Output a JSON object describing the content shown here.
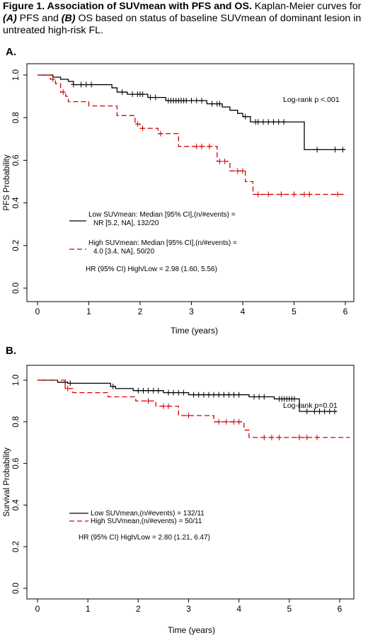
{
  "caption": {
    "title": "Figure 1. Association of SUVmean with PFS and OS.",
    "text_1": " Kaplan-Meier curves for ",
    "label_a": "(A)",
    "text_2": " PFS and ",
    "label_b": "(B)",
    "text_3": " OS based on status of baseline SUVmean of dominant lesion in untreated high-risk FL."
  },
  "chart_data": [
    {
      "type": "line",
      "panel": "A.",
      "xlabel": "Time (years)",
      "ylabel": "PFS Probability",
      "xlim": [
        0,
        6.2
      ],
      "ylim": [
        0,
        1
      ],
      "xticks": [
        0,
        1,
        2,
        3,
        4,
        5,
        6
      ],
      "yticks": [
        "0.0",
        "0.2",
        "0.4",
        "0.6",
        "0.8",
        "1.0"
      ],
      "annotation": "Log-rank p <.001",
      "hr_text": "HR (95% CI) High/Low = 2.98 (1.60, 5.56)",
      "legend": {
        "placement": "lower-left",
        "entries": [
          {
            "line1": "Low SUVmean: Median [95% CI],(n/#events) =",
            "line2": "NR [5.2, NA], 132/20"
          },
          {
            "line1": "High SUVmean: Median [95% CI],(n/#events) =",
            "line2": "4.0 [3.4, NA], 50/20"
          }
        ]
      },
      "series": [
        {
          "color": "#000000",
          "dash": false,
          "steps": [
            [
              0,
              1
            ],
            [
              0.3,
              0.99
            ],
            [
              0.45,
              0.98
            ],
            [
              0.6,
              0.97
            ],
            [
              0.7,
              0.955
            ],
            [
              1.45,
              0.94
            ],
            [
              1.55,
              0.92
            ],
            [
              1.75,
              0.91
            ],
            [
              2.15,
              0.895
            ],
            [
              2.5,
              0.88
            ],
            [
              3.3,
              0.865
            ],
            [
              3.6,
              0.85
            ],
            [
              3.75,
              0.835
            ],
            [
              3.9,
              0.82
            ],
            [
              4.0,
              0.805
            ],
            [
              4.15,
              0.78
            ],
            [
              5.2,
              0.65
            ],
            [
              6.0,
              0.65
            ]
          ],
          "censor": [
            [
              0.7,
              0.955
            ],
            [
              0.85,
              0.955
            ],
            [
              0.95,
              0.955
            ],
            [
              1.05,
              0.955
            ],
            [
              1.65,
              0.92
            ],
            [
              1.85,
              0.91
            ],
            [
              1.95,
              0.91
            ],
            [
              2.0,
              0.91
            ],
            [
              2.05,
              0.91
            ],
            [
              2.2,
              0.895
            ],
            [
              2.3,
              0.895
            ],
            [
              2.55,
              0.88
            ],
            [
              2.6,
              0.88
            ],
            [
              2.65,
              0.88
            ],
            [
              2.7,
              0.88
            ],
            [
              2.75,
              0.88
            ],
            [
              2.8,
              0.88
            ],
            [
              2.85,
              0.88
            ],
            [
              2.9,
              0.88
            ],
            [
              3.0,
              0.88
            ],
            [
              3.1,
              0.88
            ],
            [
              3.2,
              0.88
            ],
            [
              3.4,
              0.865
            ],
            [
              3.5,
              0.865
            ],
            [
              3.55,
              0.865
            ],
            [
              4.05,
              0.805
            ],
            [
              4.25,
              0.78
            ],
            [
              4.3,
              0.78
            ],
            [
              4.4,
              0.78
            ],
            [
              4.5,
              0.78
            ],
            [
              4.6,
              0.78
            ],
            [
              4.7,
              0.78
            ],
            [
              4.8,
              0.78
            ],
            [
              5.45,
              0.65
            ],
            [
              5.8,
              0.65
            ],
            [
              5.95,
              0.65
            ]
          ]
        },
        {
          "color": "#d40000",
          "dash": true,
          "steps": [
            [
              0,
              1
            ],
            [
              0.25,
              0.98
            ],
            [
              0.35,
              0.96
            ],
            [
              0.45,
              0.92
            ],
            [
              0.55,
              0.9
            ],
            [
              0.6,
              0.875
            ],
            [
              1.0,
              0.855
            ],
            [
              1.55,
              0.81
            ],
            [
              1.9,
              0.77
            ],
            [
              2.0,
              0.75
            ],
            [
              2.35,
              0.725
            ],
            [
              2.75,
              0.665
            ],
            [
              3.5,
              0.595
            ],
            [
              3.75,
              0.55
            ],
            [
              4.05,
              0.5
            ],
            [
              4.2,
              0.44
            ],
            [
              6.0,
              0.44
            ]
          ],
          "censor": [
            [
              0.3,
              0.98
            ],
            [
              0.5,
              0.92
            ],
            [
              1.95,
              0.77
            ],
            [
              2.05,
              0.75
            ],
            [
              2.4,
              0.725
            ],
            [
              3.1,
              0.665
            ],
            [
              3.2,
              0.665
            ],
            [
              3.35,
              0.665
            ],
            [
              3.55,
              0.595
            ],
            [
              3.65,
              0.595
            ],
            [
              3.9,
              0.55
            ],
            [
              4.0,
              0.55
            ],
            [
              4.3,
              0.44
            ],
            [
              4.5,
              0.44
            ],
            [
              4.75,
              0.44
            ],
            [
              5.0,
              0.44
            ],
            [
              5.2,
              0.44
            ],
            [
              5.3,
              0.44
            ],
            [
              5.85,
              0.44
            ]
          ]
        }
      ]
    },
    {
      "type": "line",
      "panel": "B.",
      "xlabel": "Time (years)",
      "ylabel": "Survival Probability",
      "xlim": [
        0,
        6.2
      ],
      "ylim": [
        0,
        1
      ],
      "xticks": [
        0,
        1,
        2,
        3,
        4,
        5,
        6
      ],
      "yticks": [
        "0.0",
        "0.2",
        "0.4",
        "0.6",
        "0.8",
        "1.0"
      ],
      "annotation": "Log-rank p=0.01",
      "hr_text": "HR (95% CI) High/Low = 2.80 (1.21, 6.47)",
      "legend": {
        "placement": "lower-left",
        "entries": [
          {
            "line1": "Low SUVmean,(n/#events) = 132/11"
          },
          {
            "line1": "High SUVmean,(n/#events) = 50/11"
          }
        ]
      },
      "series": [
        {
          "color": "#000000",
          "dash": false,
          "steps": [
            [
              0,
              1
            ],
            [
              0.4,
              0.99
            ],
            [
              0.6,
              0.985
            ],
            [
              1.45,
              0.97
            ],
            [
              1.55,
              0.96
            ],
            [
              1.9,
              0.95
            ],
            [
              2.5,
              0.94
            ],
            [
              3.0,
              0.93
            ],
            [
              4.2,
              0.92
            ],
            [
              4.7,
              0.91
            ],
            [
              5.2,
              0.85
            ],
            [
              5.95,
              0.85
            ]
          ],
          "censor": [
            [
              0.55,
              0.99
            ],
            [
              0.65,
              0.985
            ],
            [
              1.5,
              0.97
            ],
            [
              2.0,
              0.95
            ],
            [
              2.1,
              0.95
            ],
            [
              2.2,
              0.95
            ],
            [
              2.3,
              0.95
            ],
            [
              2.4,
              0.95
            ],
            [
              2.6,
              0.94
            ],
            [
              2.7,
              0.94
            ],
            [
              2.8,
              0.94
            ],
            [
              2.9,
              0.94
            ],
            [
              3.1,
              0.93
            ],
            [
              3.2,
              0.93
            ],
            [
              3.3,
              0.93
            ],
            [
              3.4,
              0.93
            ],
            [
              3.5,
              0.93
            ],
            [
              3.6,
              0.93
            ],
            [
              3.7,
              0.93
            ],
            [
              3.8,
              0.93
            ],
            [
              3.9,
              0.93
            ],
            [
              4.0,
              0.93
            ],
            [
              4.3,
              0.92
            ],
            [
              4.4,
              0.92
            ],
            [
              4.5,
              0.92
            ],
            [
              4.8,
              0.91
            ],
            [
              4.85,
              0.91
            ],
            [
              4.9,
              0.91
            ],
            [
              4.95,
              0.91
            ],
            [
              5.0,
              0.91
            ],
            [
              5.05,
              0.91
            ],
            [
              5.1,
              0.91
            ],
            [
              5.35,
              0.85
            ],
            [
              5.5,
              0.85
            ],
            [
              5.6,
              0.85
            ],
            [
              5.7,
              0.85
            ],
            [
              5.8,
              0.85
            ],
            [
              5.9,
              0.85
            ]
          ]
        },
        {
          "color": "#d40000",
          "dash": true,
          "steps": [
            [
              0,
              1
            ],
            [
              0.55,
              0.96
            ],
            [
              0.7,
              0.94
            ],
            [
              1.4,
              0.92
            ],
            [
              1.95,
              0.9
            ],
            [
              2.35,
              0.875
            ],
            [
              2.8,
              0.83
            ],
            [
              3.5,
              0.8
            ],
            [
              4.1,
              0.76
            ],
            [
              4.2,
              0.725
            ],
            [
              6.2,
              0.725
            ]
          ],
          "censor": [
            [
              0.6,
              0.96
            ],
            [
              2.2,
              0.9
            ],
            [
              2.5,
              0.875
            ],
            [
              2.6,
              0.875
            ],
            [
              3.0,
              0.83
            ],
            [
              3.6,
              0.8
            ],
            [
              3.75,
              0.8
            ],
            [
              3.9,
              0.8
            ],
            [
              4.0,
              0.8
            ],
            [
              4.5,
              0.725
            ],
            [
              4.65,
              0.725
            ],
            [
              4.8,
              0.725
            ],
            [
              5.2,
              0.725
            ],
            [
              5.35,
              0.725
            ],
            [
              5.55,
              0.725
            ]
          ]
        }
      ]
    }
  ]
}
